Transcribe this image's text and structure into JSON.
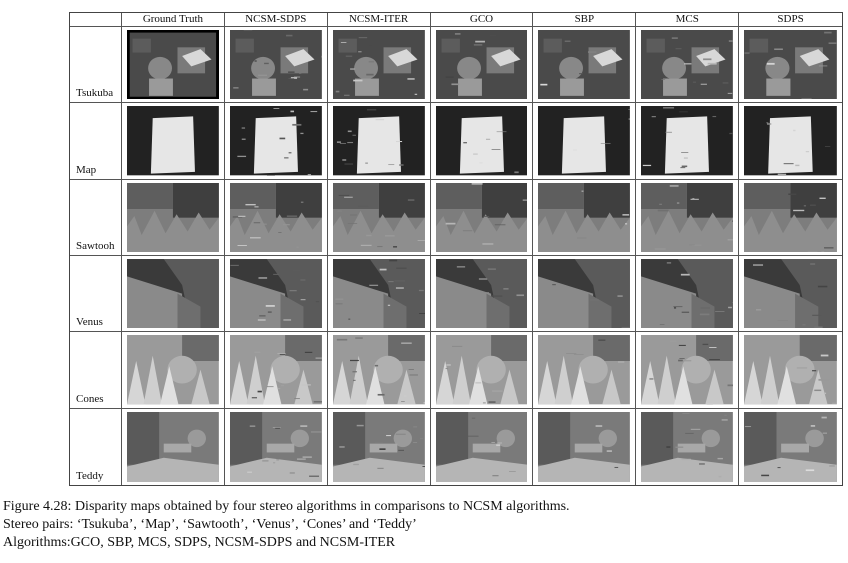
{
  "columns": [
    "Ground Truth",
    "NCSM-SDPS",
    "NCSM-ITER",
    "GCO",
    "SBP",
    "MCS",
    "SDPS"
  ],
  "rows": [
    "Tsukuba",
    "Map",
    "Sawtooh",
    "Venus",
    "Cones",
    "Teddy"
  ],
  "caption": {
    "line1": "Figure 4.28: Disparity maps obtained by four stereo algorithms in comparisons to NCSM algorithms.",
    "line2": "Stereo pairs: ‘Tsukuba’, ‘Map’, ‘Sawtooth’, ‘Venus’, ‘Cones’ and ‘Teddy’",
    "line3": "Algorithms:GCO, SBP, MCS, SDPS, NCSM-SDPS and NCSM-ITER"
  }
}
